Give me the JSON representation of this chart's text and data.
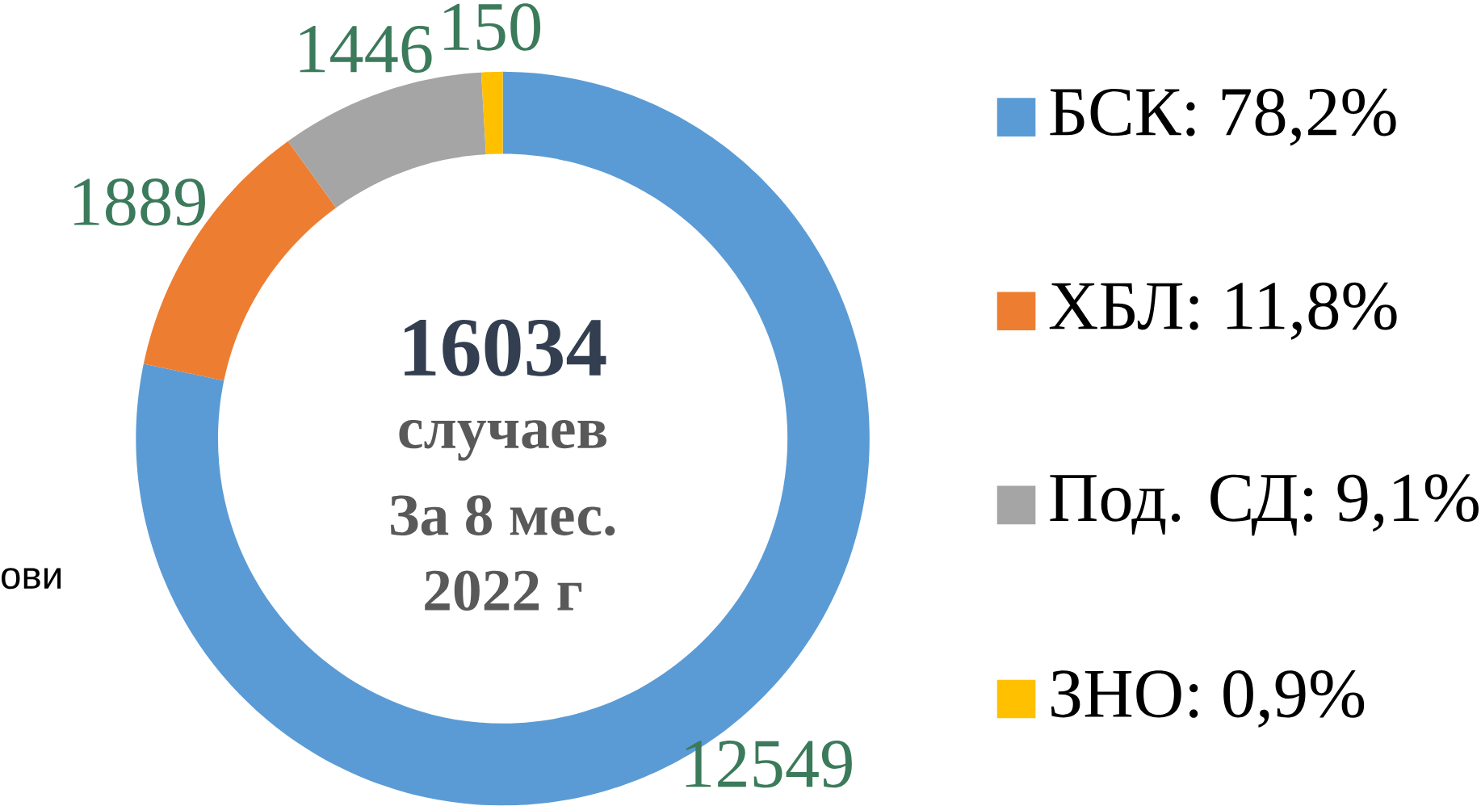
{
  "chart_data": {
    "type": "donut",
    "title": "16034",
    "annotations": [
      "случаев",
      "За 8 мес.",
      "2022 г",
      "ови"
    ],
    "categories": [
      "БСК: 78,2%",
      "ХБЛ: 11,8%",
      "Под. СД: 9,1%",
      "ЗНО: 0,9%"
    ],
    "values": [
      12549,
      1889,
      1446,
      150
    ],
    "colors": [
      "#5b9bd5",
      "#ed7d31",
      "#a5a5a5",
      "#ffc000"
    ],
    "data_labels": true,
    "legend": "right"
  }
}
